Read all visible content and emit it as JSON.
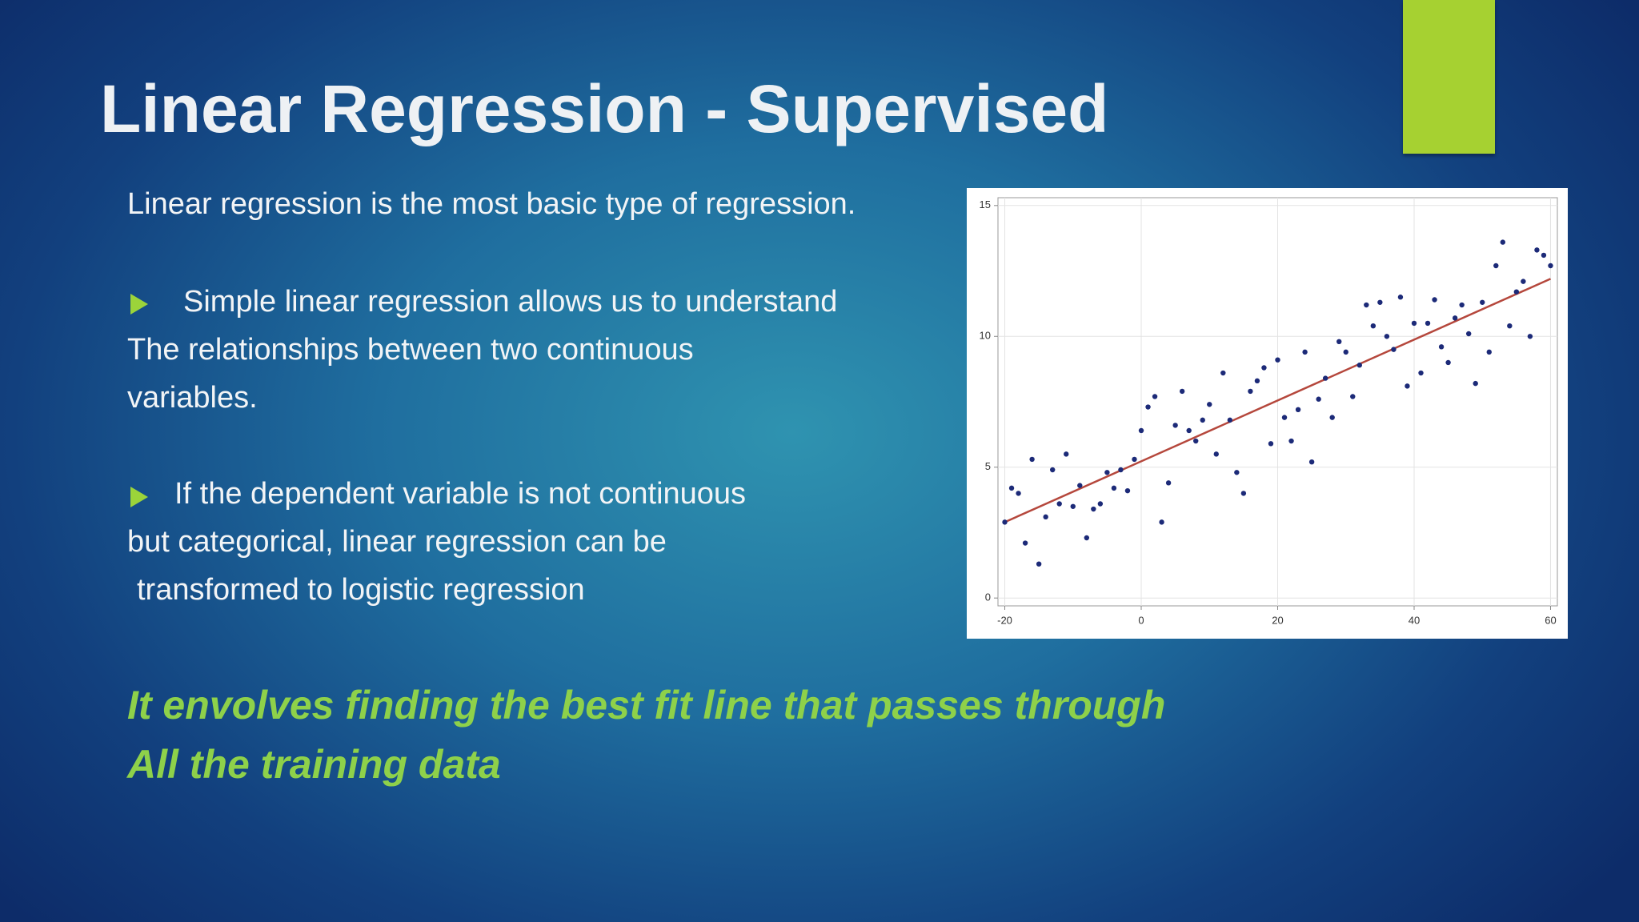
{
  "slide": {
    "title": "Linear Regression - Supervised",
    "intro": "Linear regression is the most basic type of regression.",
    "bullets": [
      {
        "lines": [
          "Simple linear regression allows us to understand",
          "The relationships between two continuous",
          "variables."
        ]
      },
      {
        "lines": [
          "If the dependent variable is not continuous",
          "but categorical, linear regression can be",
          "transformed to logistic regression"
        ]
      }
    ],
    "highlight": [
      "It envolves finding the best fit line that passes through",
      "All the training data"
    ]
  },
  "chart_data": {
    "type": "scatter",
    "x": [
      -20,
      -19,
      -18,
      -17,
      -16,
      -15,
      -14,
      -13,
      -12,
      -11,
      -10,
      -9,
      -8,
      -7,
      -6,
      -5,
      -4,
      -3,
      -2,
      -1,
      0,
      1,
      2,
      3,
      4,
      5,
      6,
      7,
      8,
      9,
      10,
      11,
      12,
      13,
      14,
      15,
      16,
      17,
      18,
      19,
      20,
      21,
      22,
      23,
      24,
      25,
      26,
      27,
      28,
      29,
      30,
      31,
      32,
      33,
      34,
      35,
      36,
      37,
      38,
      39,
      40,
      41,
      42,
      43,
      44,
      45,
      46,
      47,
      48,
      49,
      50,
      51,
      52,
      53,
      54,
      55,
      56,
      57,
      58,
      59,
      60
    ],
    "series": [
      {
        "color": "#1c2a78",
        "values": [
          2.9,
          4.2,
          4.0,
          2.1,
          5.3,
          1.3,
          3.1,
          4.9,
          3.6,
          5.5,
          3.5,
          4.3,
          2.3,
          3.4,
          3.6,
          4.8,
          4.2,
          4.9,
          4.1,
          5.3,
          6.4,
          7.3,
          7.7,
          2.9,
          4.4,
          6.6,
          7.9,
          6.4,
          6.0,
          6.8,
          7.4,
          5.5,
          8.6,
          6.8,
          4.8,
          4.0,
          7.9,
          8.3,
          8.8,
          5.9,
          9.1,
          6.9,
          6.0,
          7.2,
          9.4,
          5.2,
          7.6,
          8.4,
          6.9,
          9.8,
          9.4,
          7.7,
          8.9,
          11.2,
          10.4,
          11.3,
          10.0,
          9.5,
          11.5,
          8.1,
          10.5,
          8.6,
          10.5,
          11.4,
          9.6,
          9.0,
          10.7,
          11.2,
          10.1,
          8.2,
          11.3,
          9.4,
          12.7,
          13.6,
          10.4,
          11.7,
          12.1,
          10.0,
          13.3,
          13.1,
          12.7
        ]
      }
    ],
    "trend_line": {
      "x": [
        -20,
        60
      ],
      "values": [
        2.9,
        12.2
      ],
      "color": "#b5473c"
    },
    "xlim": [
      -21,
      61
    ],
    "ylim": [
      -0.3,
      15.3
    ],
    "xticks": [
      -20,
      0,
      20,
      40,
      60
    ],
    "yticks": [
      0,
      5,
      10,
      15
    ],
    "grid": true
  }
}
